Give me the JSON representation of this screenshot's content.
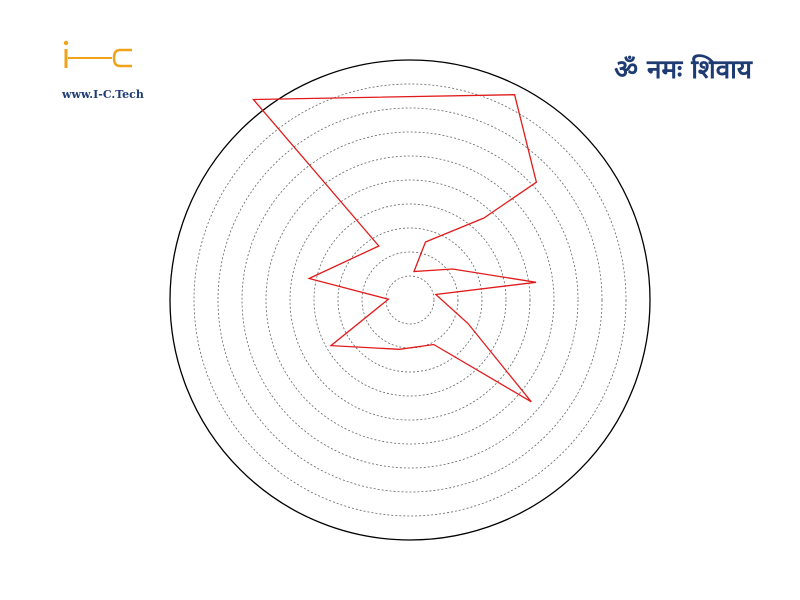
{
  "header": {
    "website": "www.I-C.Tech",
    "mantra": "ॐ नमः शिवाय",
    "logo_icon": "i-c-logo-icon"
  },
  "colors": {
    "brand_orange": "#f0a318",
    "brand_navy": "#1f3b73",
    "series_red": "#e11b1b",
    "outer_circle": "#000000",
    "grid": "#666666"
  },
  "chart_data": {
    "type": "radar",
    "grid": true,
    "rmax": 10,
    "rings": [
      1,
      2,
      3,
      4,
      5,
      6,
      7,
      8,
      9
    ],
    "series": [
      {
        "points": [
          {
            "angle": 82,
            "r": 1.2
          },
          {
            "angle": 75,
            "r": 2.5
          },
          {
            "angle": 48,
            "r": 4.6
          },
          {
            "angle": 43,
            "r": 7.2
          },
          {
            "angle": 63,
            "r": 9.6
          },
          {
            "angle": 128,
            "r": 10.6
          },
          {
            "angle": 120,
            "r": 2.6
          },
          {
            "angle": 168,
            "r": 4.3
          },
          {
            "angle": 178,
            "r": 0.9
          },
          {
            "angle": 210,
            "r": 3.8
          },
          {
            "angle": 258,
            "r": 2.1
          },
          {
            "angle": 298,
            "r": 2.1
          },
          {
            "angle": 320,
            "r": 6.6
          },
          {
            "angle": 338,
            "r": 2.6
          },
          {
            "angle": 12,
            "r": 1.1
          },
          {
            "angle": 8,
            "r": 5.3
          },
          {
            "angle": 36,
            "r": 2.2
          }
        ]
      }
    ]
  }
}
